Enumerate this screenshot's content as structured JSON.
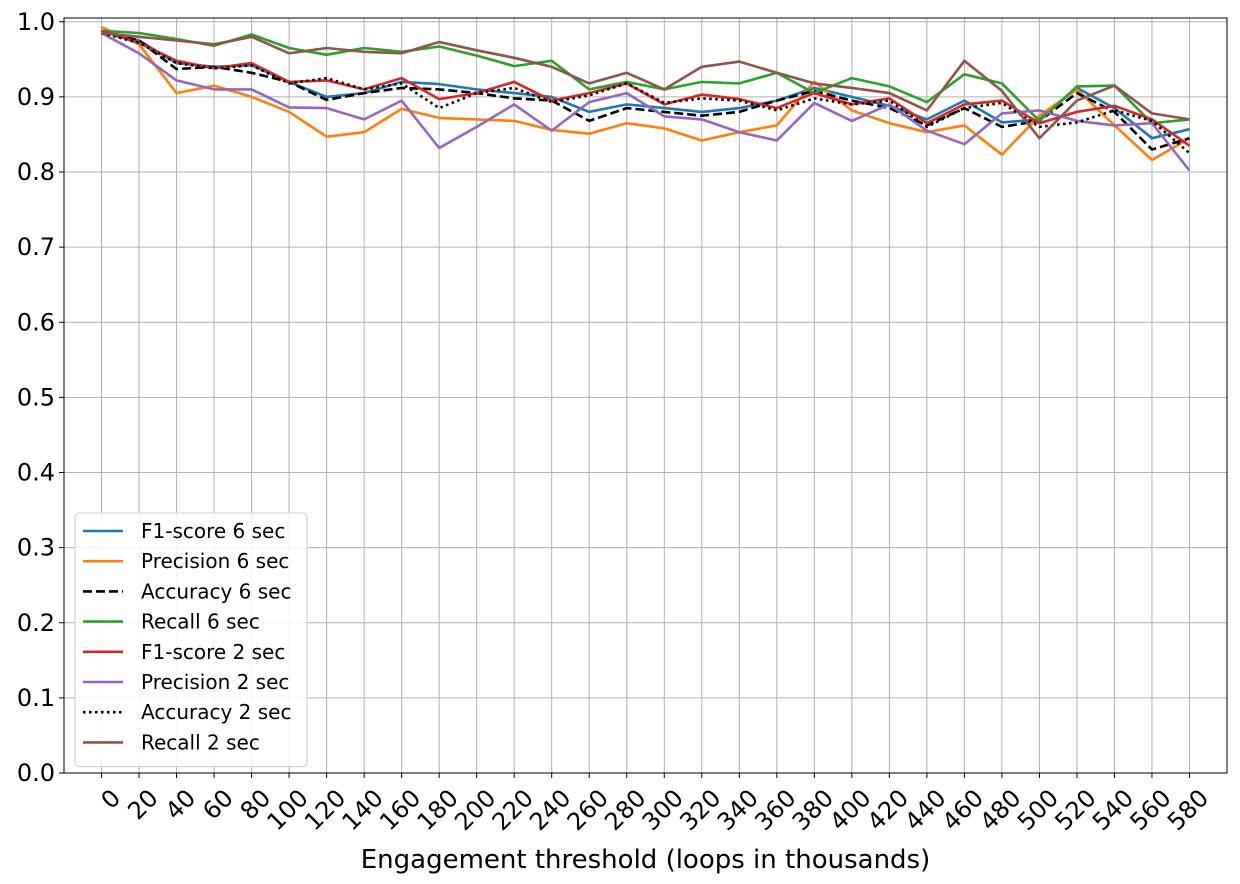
{
  "chart_data": {
    "type": "line",
    "title": "",
    "xlabel": "Engagement threshold (loops in thousands)",
    "ylabel": "",
    "x": [
      0,
      20,
      40,
      60,
      80,
      100,
      120,
      140,
      160,
      180,
      200,
      220,
      240,
      260,
      280,
      300,
      320,
      340,
      360,
      380,
      400,
      420,
      440,
      460,
      480,
      500,
      520,
      540,
      560,
      580
    ],
    "x_tick_labels": [
      "0",
      "20",
      "40",
      "60",
      "80",
      "100",
      "120",
      "140",
      "160",
      "180",
      "200",
      "220",
      "240",
      "260",
      "280",
      "300",
      "320",
      "340",
      "360",
      "380",
      "400",
      "420",
      "440",
      "460",
      "480",
      "500",
      "520",
      "540",
      "560",
      "580"
    ],
    "y_ticks": [
      "0.0",
      "0.1",
      "0.2",
      "0.3",
      "0.4",
      "0.5",
      "0.6",
      "0.7",
      "0.8",
      "0.9",
      "1.0"
    ],
    "xlim": [
      -20,
      600
    ],
    "ylim": [
      0.0,
      1.005
    ],
    "grid": true,
    "legend_position": "bottom-left",
    "series": [
      {
        "name": "F1-score 6 sec",
        "color": "#1f77b4",
        "dash": "solid",
        "values": [
          0.988,
          0.975,
          0.945,
          0.94,
          0.942,
          0.92,
          0.9,
          0.905,
          0.92,
          0.917,
          0.91,
          0.905,
          0.9,
          0.88,
          0.89,
          0.885,
          0.88,
          0.885,
          0.895,
          0.912,
          0.9,
          0.888,
          0.87,
          0.895,
          0.866,
          0.87,
          0.912,
          0.885,
          0.845,
          0.857
        ]
      },
      {
        "name": "Precision 6 sec",
        "color": "#ff7f0e",
        "dash": "solid",
        "values": [
          0.993,
          0.97,
          0.905,
          0.915,
          0.9,
          0.88,
          0.847,
          0.853,
          0.884,
          0.872,
          0.87,
          0.868,
          0.856,
          0.851,
          0.865,
          0.858,
          0.842,
          0.853,
          0.862,
          0.92,
          0.882,
          0.865,
          0.853,
          0.862,
          0.823,
          0.875,
          0.91,
          0.862,
          0.816,
          0.845
        ]
      },
      {
        "name": "Accuracy 6 sec",
        "color": "#000000",
        "dash": "dashed",
        "values": [
          0.985,
          0.975,
          0.937,
          0.94,
          0.932,
          0.92,
          0.896,
          0.905,
          0.912,
          0.91,
          0.905,
          0.898,
          0.895,
          0.868,
          0.885,
          0.88,
          0.875,
          0.88,
          0.895,
          0.908,
          0.895,
          0.885,
          0.862,
          0.885,
          0.86,
          0.868,
          0.905,
          0.88,
          0.83,
          0.845
        ]
      },
      {
        "name": "Recall 6 sec",
        "color": "#2ca02c",
        "dash": "solid",
        "values": [
          0.988,
          0.985,
          0.977,
          0.968,
          0.983,
          0.965,
          0.956,
          0.965,
          0.96,
          0.967,
          0.955,
          0.941,
          0.948,
          0.91,
          0.92,
          0.91,
          0.92,
          0.918,
          0.932,
          0.905,
          0.925,
          0.914,
          0.893,
          0.93,
          0.918,
          0.868,
          0.914,
          0.915,
          0.865,
          0.87
        ]
      },
      {
        "name": "F1-score 2 sec",
        "color": "#d62728",
        "dash": "solid",
        "values": [
          0.988,
          0.972,
          0.948,
          0.938,
          0.945,
          0.92,
          0.922,
          0.91,
          0.925,
          0.897,
          0.905,
          0.92,
          0.895,
          0.905,
          0.918,
          0.89,
          0.903,
          0.897,
          0.885,
          0.905,
          0.89,
          0.898,
          0.865,
          0.89,
          0.895,
          0.865,
          0.88,
          0.888,
          0.87,
          0.835
        ]
      },
      {
        "name": "Precision 2 sec",
        "color": "#9467bd",
        "dash": "solid",
        "values": [
          0.985,
          0.958,
          0.922,
          0.91,
          0.91,
          0.886,
          0.885,
          0.87,
          0.895,
          0.832,
          0.86,
          0.89,
          0.855,
          0.893,
          0.905,
          0.874,
          0.87,
          0.853,
          0.842,
          0.892,
          0.868,
          0.89,
          0.855,
          0.837,
          0.878,
          0.882,
          0.868,
          0.862,
          0.865,
          0.802
        ]
      },
      {
        "name": "Accuracy 2 sec",
        "color": "#000000",
        "dash": "dotted",
        "values": [
          0.985,
          0.972,
          0.945,
          0.938,
          0.942,
          0.918,
          0.925,
          0.91,
          0.918,
          0.885,
          0.905,
          0.912,
          0.893,
          0.902,
          0.918,
          0.892,
          0.898,
          0.895,
          0.882,
          0.898,
          0.89,
          0.895,
          0.86,
          0.885,
          0.892,
          0.86,
          0.866,
          0.882,
          0.868,
          0.825
        ]
      },
      {
        "name": "Recall 2 sec",
        "color": "#8c564b",
        "dash": "solid",
        "values": [
          0.985,
          0.98,
          0.975,
          0.97,
          0.98,
          0.958,
          0.965,
          0.96,
          0.958,
          0.973,
          0.962,
          0.952,
          0.94,
          0.918,
          0.932,
          0.91,
          0.94,
          0.947,
          0.932,
          0.918,
          0.912,
          0.905,
          0.882,
          0.948,
          0.908,
          0.845,
          0.895,
          0.915,
          0.878,
          0.87
        ]
      }
    ]
  }
}
